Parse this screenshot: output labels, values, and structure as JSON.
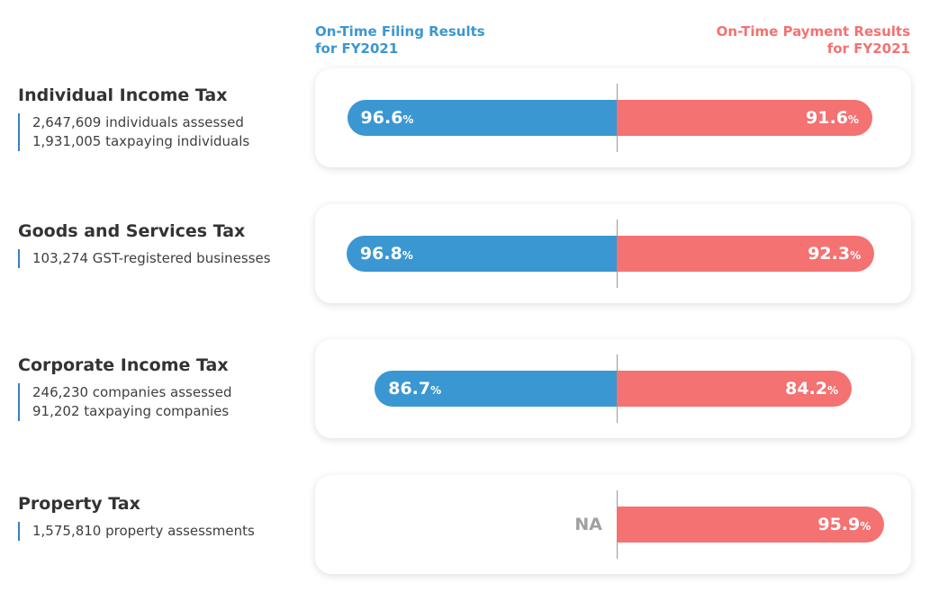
{
  "headers": {
    "filing_line1": "On-Time Filing Results",
    "filing_line2": "for FY2021",
    "payment_line1": "On-Time Payment Results",
    "payment_line2": "for FY2021"
  },
  "colors": {
    "filing": "#3a97d2",
    "payment": "#f47272",
    "title": "#333333",
    "na": "#a0a0a0"
  },
  "chart_data": {
    "type": "bar",
    "orientation": "horizontal-diverging",
    "title": "",
    "categories": [
      "Individual Income Tax",
      "Goods and Services Tax",
      "Corporate Income Tax",
      "Property Tax"
    ],
    "category_details": [
      [
        "2,647,609 individuals assessed",
        "1,931,005 taxpaying individuals"
      ],
      [
        "103,274 GST-registered businesses"
      ],
      [
        "246,230 companies assessed",
        "91,202 taxpaying companies"
      ],
      [
        "1,575,810 property assessments"
      ]
    ],
    "series": [
      {
        "name": "On-Time Filing Results for FY2021",
        "values": [
          96.6,
          96.8,
          86.7,
          null
        ],
        "labels": [
          "96.6",
          "96.8",
          "86.7",
          "NA"
        ]
      },
      {
        "name": "On-Time Payment Results for FY2021",
        "values": [
          91.6,
          92.3,
          84.2,
          95.9
        ],
        "labels": [
          "91.6",
          "92.3",
          "84.2",
          "95.9"
        ]
      }
    ],
    "unit": "%",
    "xlabel": "",
    "ylabel": ""
  }
}
